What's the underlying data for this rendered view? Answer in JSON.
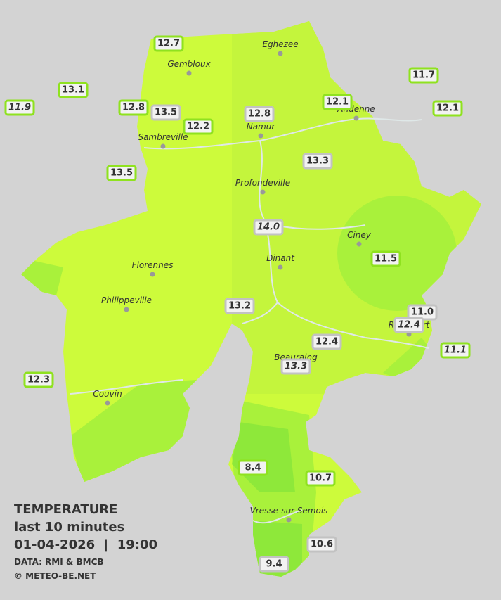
{
  "title": {
    "heading": "TEMPERATURE",
    "period": "last 10 minutes",
    "datetime": "01-04-2026  |  19:00",
    "source": "DATA: RMI & BMCB",
    "credit": "© METEO-BE.NET"
  },
  "cities": [
    "Eghezee",
    "Gembloux",
    "Andenne",
    "Namur",
    "Sambreville",
    "Profondeville",
    "Ciney",
    "Dinant",
    "Florennes",
    "Philippeville",
    "Rochefort",
    "Beauraing",
    "Couvin",
    "Vresse-sur-Semois"
  ],
  "stations": [
    {
      "value": "12.7",
      "border": "green",
      "italic": false
    },
    {
      "value": "13.1",
      "border": "green",
      "italic": false
    },
    {
      "value": "11.9",
      "border": "green",
      "italic": true
    },
    {
      "value": "12.8",
      "border": "green",
      "italic": false
    },
    {
      "value": "13.5",
      "border": "gray",
      "italic": false
    },
    {
      "value": "12.2",
      "border": "green",
      "italic": false
    },
    {
      "value": "12.8",
      "border": "gray",
      "italic": false
    },
    {
      "value": "12.1",
      "border": "green",
      "italic": false
    },
    {
      "value": "11.7",
      "border": "green",
      "italic": false
    },
    {
      "value": "12.1",
      "border": "green",
      "italic": false
    },
    {
      "value": "13.3",
      "border": "gray",
      "italic": false
    },
    {
      "value": "13.5",
      "border": "green",
      "italic": false
    },
    {
      "value": "14.0",
      "border": "gray",
      "italic": true
    },
    {
      "value": "11.5",
      "border": "green",
      "italic": false
    },
    {
      "value": "13.2",
      "border": "gray",
      "italic": false
    },
    {
      "value": "11.0",
      "border": "gray",
      "italic": false
    },
    {
      "value": "12.4",
      "border": "gray",
      "italic": true
    },
    {
      "value": "11.1",
      "border": "green",
      "italic": true
    },
    {
      "value": "12.4",
      "border": "gray",
      "italic": false
    },
    {
      "value": "13.3",
      "border": "gray",
      "italic": true
    },
    {
      "value": "12.3",
      "border": "green",
      "italic": false
    },
    {
      "value": "8.4",
      "border": "green",
      "italic": false
    },
    {
      "value": "10.7",
      "border": "green",
      "italic": false
    },
    {
      "value": "10.6",
      "border": "gray",
      "italic": false
    },
    {
      "value": "9.4",
      "border": "gray",
      "italic": false
    }
  ]
}
